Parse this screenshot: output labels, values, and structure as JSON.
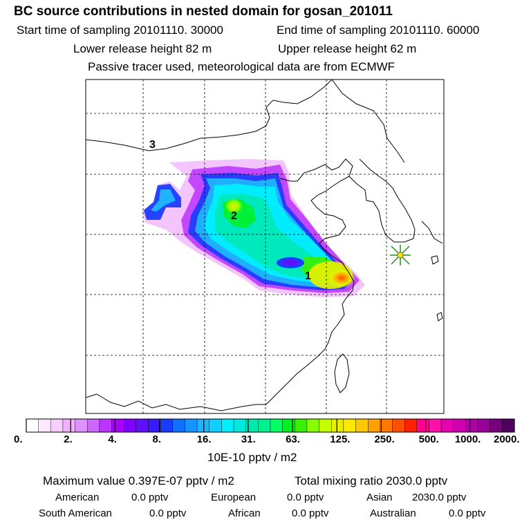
{
  "header": {
    "title": "BC  source contributions in nested domain for gosan_201011",
    "start_time": "Start time of sampling 20101110. 30000",
    "end_time": "End time of sampling 20101110. 60000",
    "lower_release": "Lower release height   82 m",
    "upper_release": "Upper release height   62 m",
    "tracer_note": "Passive tracer used, meteorological data are from ECMWF"
  },
  "map": {
    "labels": [
      "1",
      "2",
      "3"
    ],
    "receptor_marker": "asterisk-marker"
  },
  "colorbar": {
    "tick_labels": [
      "0.",
      "2.",
      "4.",
      "8.",
      "16.",
      "31.",
      "63.",
      "125.",
      "250.",
      "500.",
      "1000.",
      "2000."
    ],
    "colors": [
      "#ffffff",
      "#fce8ff",
      "#f8d0ff",
      "#f0b0ff",
      "#e090ff",
      "#cc66ff",
      "#bb33ff",
      "#aa00ff",
      "#8000ff",
      "#6010ff",
      "#3a1aff",
      "#1a3cff",
      "#1070ff",
      "#1894ff",
      "#20b4ff",
      "#10d0ff",
      "#00f0ff",
      "#00e8e0",
      "#00e8b0",
      "#00f090",
      "#00ff60",
      "#00f020",
      "#38f000",
      "#88ff00",
      "#c8ff00",
      "#e8f000",
      "#ffe800",
      "#ffc800",
      "#ffa000",
      "#ff7800",
      "#ff5000",
      "#ff2000",
      "#ff0090",
      "#ff10a8",
      "#e800b0",
      "#d000b0",
      "#b000a8",
      "#980098",
      "#780080",
      "#500060"
    ],
    "units": "10E-10 pptv / m2"
  },
  "summary": {
    "max_value": "Maximum value  0.397E-07 pptv / m2",
    "total_mixing": "Total mixing ratio     2030.0 pptv",
    "american_label": "American",
    "american_value": "0.0 pptv",
    "european_label": "European",
    "european_value": "0.0 pptv",
    "asian_label": "Asian",
    "asian_value": "2030.0 pptv",
    "south_american_label": "South American",
    "south_american_value": "0.0 pptv",
    "african_label": "African",
    "african_value": "0.0 pptv",
    "australian_label": "Australian",
    "australian_value": "0.0 pptv"
  }
}
